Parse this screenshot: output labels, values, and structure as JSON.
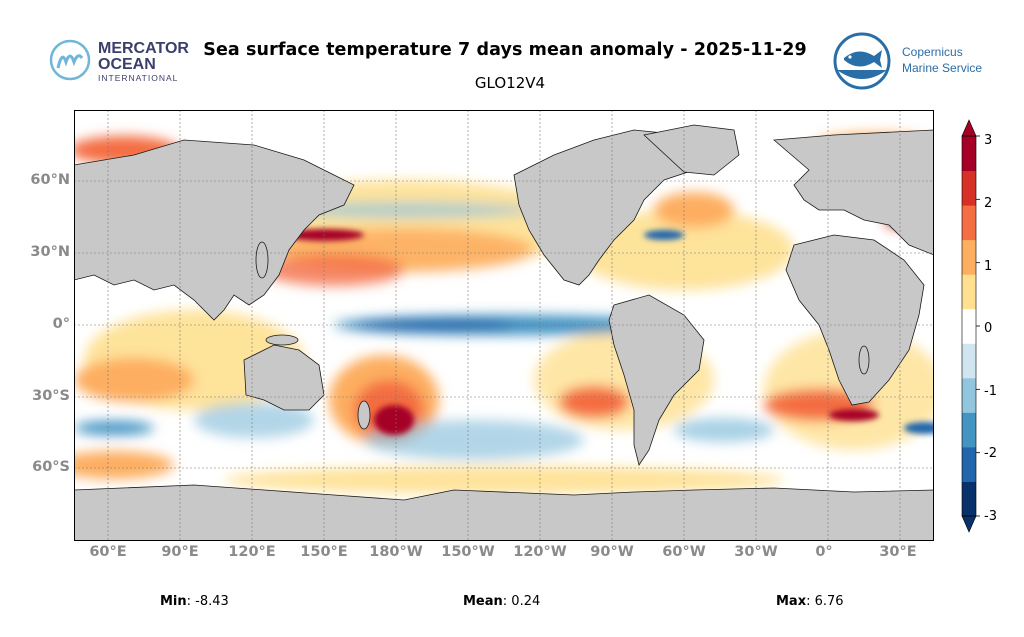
{
  "title": "Sea surface temperature 7 days mean anomaly - 2025-11-29",
  "subtitle": "GLO12V4",
  "logos": {
    "left": {
      "icon": "mercator-ocean-logo",
      "line1": "MERCATOR",
      "line2": "OCEAN",
      "line3": "INTERNATIONAL"
    },
    "right": {
      "icon": "copernicus-fish-logo",
      "line1": "Copernicus",
      "line2": "Marine Service"
    }
  },
  "map": {
    "land_color": "#c8c8c8",
    "lat_labels": [
      "60°N",
      "30°N",
      "0°",
      "30°S",
      "60°S"
    ],
    "lon_labels": [
      "60°E",
      "90°E",
      "120°E",
      "150°E",
      "180°W",
      "150°W",
      "120°W",
      "90°W",
      "60°W",
      "30°W",
      "0°",
      "30°E"
    ]
  },
  "colorbar": {
    "ticks": [
      "3",
      "2",
      "1",
      "0",
      "-1",
      "-2",
      "-3"
    ],
    "colors": [
      "#08306b",
      "#2166ac",
      "#4393c3",
      "#92c5de",
      "#d1e5f0",
      "#ffffff",
      "#fee090",
      "#fdae61",
      "#f46d43",
      "#d73027",
      "#a50026"
    ]
  },
  "stats": {
    "min_label": "Min",
    "min_value": ": -8.43",
    "mean_label": "Mean",
    "mean_value": ": 0.24",
    "max_label": "Max",
    "max_value": ": 6.76"
  }
}
